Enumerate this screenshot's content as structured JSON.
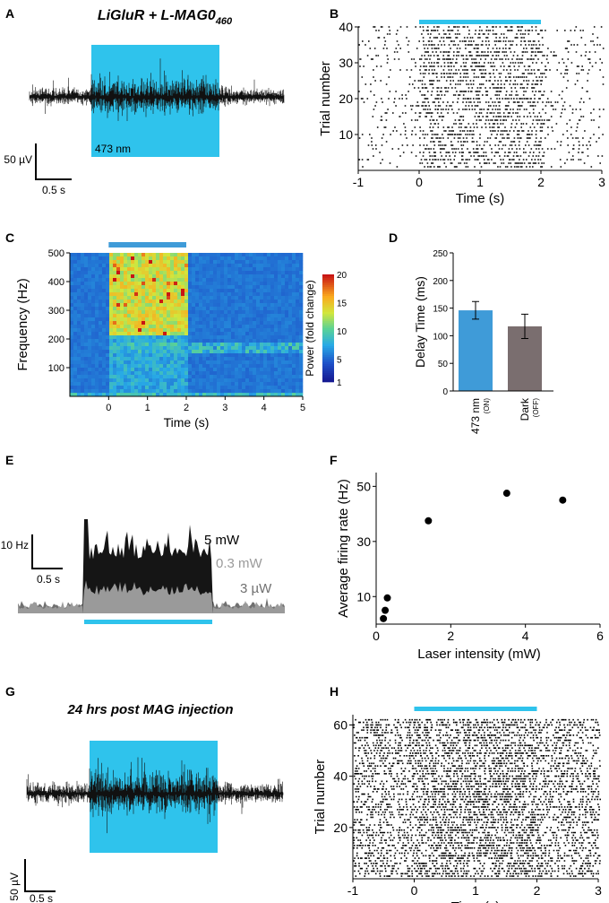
{
  "colors": {
    "stim": "#2fc3ec",
    "bar_on": "#3f9bd8",
    "bar_dark": "#7a6e6f",
    "grey": "#9a9a9a",
    "dgrey": "#707070"
  },
  "panels": {
    "A": {
      "label": "A",
      "title_main": "LiGluR + L-MAG0",
      "title_sub": "460",
      "stim_label": "473 nm",
      "scale_v": "50 µV",
      "scale_t": "0.5 s"
    },
    "B": {
      "label": "B"
    },
    "C": {
      "label": "C"
    },
    "D": {
      "label": "D"
    },
    "E": {
      "label": "E",
      "scale_v": "10 Hz",
      "scale_t": "0.5 s",
      "legend": [
        "5 mW",
        "0.3 mW",
        "3 µW"
      ]
    },
    "F": {
      "label": "F"
    },
    "G": {
      "label": "G",
      "title": "24 hrs post MAG injection",
      "scale_v": "50 µV",
      "scale_t": "0.5 s"
    },
    "H": {
      "label": "H"
    }
  },
  "chart_data": [
    {
      "id": "B",
      "type": "scatter",
      "title": "",
      "xlabel": "Time (s)",
      "ylabel": "Trial number",
      "xlim": [
        -1,
        3
      ],
      "ylim": [
        0,
        40
      ],
      "xticks": [
        "-1",
        "0",
        "1",
        "2",
        "3"
      ],
      "yticks": [
        "10",
        "20",
        "30",
        "40"
      ],
      "stimulus": [
        0,
        2
      ],
      "trials": 40,
      "description_values": {
        "rate_off": 0.3,
        "rate_on": 1.0
      }
    },
    {
      "id": "C",
      "type": "heatmap",
      "title": "",
      "xlabel": "Time (s)",
      "ylabel": "Frequency (Hz)",
      "xlim": [
        -1,
        5
      ],
      "ylim": [
        0,
        500
      ],
      "xticks": [
        "0",
        "1",
        "2",
        "3",
        "4",
        "5"
      ],
      "yticks": [
        "100",
        "200",
        "300",
        "400",
        "500"
      ],
      "stimulus": [
        0,
        2
      ],
      "colorbar_label": "Power (fold change)",
      "colorbar_ticks": [
        "1",
        "5",
        "10",
        "15",
        "20"
      ],
      "colorbar_range": [
        1,
        20
      ]
    },
    {
      "id": "D",
      "type": "bar",
      "title": "",
      "xlabel": "",
      "ylabel": "Delay Time (ms)",
      "ylim": [
        0,
        250
      ],
      "yticks": [
        "0",
        "50",
        "100",
        "150",
        "200",
        "250"
      ],
      "categories": [
        {
          "main": "473 nm",
          "sub": "(ON)"
        },
        {
          "main": "Dark",
          "sub": "(OFF)"
        }
      ],
      "values": [
        146,
        117
      ],
      "errors": [
        16,
        22
      ]
    },
    {
      "id": "F",
      "type": "scatter",
      "title": "",
      "xlabel": "Laser intensity (mW)",
      "ylabel": "Average firing rate (Hz)",
      "xlim": [
        0,
        6
      ],
      "ylim": [
        0,
        55
      ],
      "xticks": [
        "0",
        "2",
        "4",
        "6"
      ],
      "yticks": [
        "10",
        "30",
        "50"
      ],
      "x": [
        0.003,
        0.05,
        0.3,
        1.4,
        3.5,
        5.0
      ],
      "y": [
        2.0,
        5.0,
        9.5,
        37.5,
        47.5,
        45.0
      ]
    },
    {
      "id": "H",
      "type": "scatter",
      "title": "",
      "xlabel": "Time (s)",
      "ylabel": "Trial number",
      "xlim": [
        -1,
        3
      ],
      "ylim": [
        0,
        64
      ],
      "xticks": [
        "-1",
        "0",
        "1",
        "2",
        "3"
      ],
      "yticks": [
        "20",
        "40",
        "60"
      ],
      "stimulus": [
        0,
        2
      ],
      "trials": 62
    }
  ]
}
